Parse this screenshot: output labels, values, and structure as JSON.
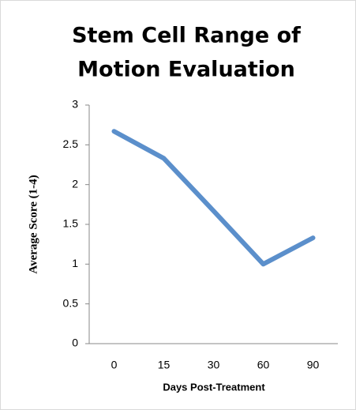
{
  "chart_data": {
    "type": "line",
    "title": [
      "Stem Cell Range of",
      "Motion Evaluation"
    ],
    "x_label": "Days Post-Treatment",
    "y_label": "Average Score (1-4)",
    "categories": [
      "0",
      "15",
      "30",
      "60",
      "90"
    ],
    "series": [
      {
        "name": "Average Score",
        "color": "#5b8fcb",
        "values": [
          2.67,
          2.33,
          1.67,
          1.0,
          1.33
        ]
      }
    ],
    "ylim": [
      0,
      3
    ],
    "yticks": [
      0,
      0.5,
      1,
      1.5,
      2,
      2.5,
      3
    ],
    "grid": false
  }
}
